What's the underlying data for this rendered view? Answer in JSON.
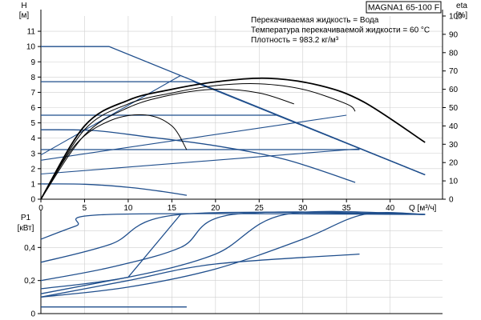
{
  "colors": {
    "curve_blue": "#1f4e8c",
    "curve_black": "#000000",
    "grid": "#cfcfcf"
  },
  "chart_data": [
    {
      "type": "line",
      "model": "MAGNA1 65-100 F",
      "info_lines": [
        "Перекачиваемая жидкость = Вода",
        "Температура перекачиваемой жидкости = 60 °C",
        "Плотность = 983.2 кг/м³"
      ],
      "ylabel": "H",
      "yunit": "[м]",
      "y2label": "eta",
      "y2unit": "[%]",
      "xlabel": "Q",
      "xunit": "[м³/ч]",
      "xlim": [
        0,
        46
      ],
      "ylim": [
        0,
        12
      ],
      "y2lim": [
        0,
        100
      ],
      "x_ticks": [
        "0",
        "5",
        "10",
        "15",
        "20",
        "25",
        "30",
        "35",
        "40"
      ],
      "y_ticks": [
        "0",
        "1",
        "2",
        "3",
        "4",
        "5",
        "6",
        "7",
        "8",
        "9",
        "10",
        "11"
      ],
      "y2_ticks": [
        "0",
        "10",
        "20",
        "30",
        "40",
        "50",
        "60",
        "70",
        "80",
        "90",
        "100"
      ],
      "grid": true,
      "head_curves": [
        {
          "points": [
            [
              0,
              10
            ],
            [
              7.8,
              10
            ],
            [
              44,
              1.6
            ]
          ]
        },
        {
          "points": [
            [
              0,
              7.7
            ],
            [
              17.5,
              7.7
            ],
            [
              44,
              1.6
            ]
          ]
        },
        {
          "points": [
            [
              0,
              5.5
            ],
            [
              27,
              5.5
            ],
            [
              44,
              1.6
            ]
          ]
        },
        {
          "points": [
            [
              0,
              4.55
            ],
            [
              6,
              4.5
            ],
            [
              12,
              4.1
            ],
            [
              20,
              3.5
            ],
            [
              28,
              2.6
            ],
            [
              36,
              1.1
            ]
          ]
        },
        {
          "points": [
            [
              0,
              3.25
            ],
            [
              36.5,
              3.25
            ]
          ]
        },
        {
          "points": [
            [
              0,
              1.0
            ],
            [
              5,
              0.98
            ],
            [
              10,
              0.78
            ],
            [
              14,
              0.5
            ],
            [
              16.7,
              0.25
            ]
          ]
        }
      ],
      "system_curves": [
        {
          "points": [
            [
              0,
              2.9
            ],
            [
              16,
              8.1
            ]
          ]
        },
        {
          "points": [
            [
              0,
              2.55
            ],
            [
              35,
              5.5
            ]
          ]
        },
        {
          "points": [
            [
              0,
              1.65
            ],
            [
              36.5,
              3.3
            ]
          ]
        }
      ],
      "efficiency_curves": [
        {
          "points": [
            [
              0,
              0
            ],
            [
              4,
              30
            ],
            [
              8,
              43
            ],
            [
              12,
              46
            ],
            [
              15,
              40
            ],
            [
              16.7,
              27
            ]
          ]
        },
        {
          "points": [
            [
              0,
              0
            ],
            [
              5,
              35
            ],
            [
              10,
              50
            ],
            [
              15,
              57
            ],
            [
              20,
              60
            ],
            [
              25,
              58
            ],
            [
              29,
              52
            ]
          ]
        },
        {
          "points": [
            [
              0,
              0
            ],
            [
              5,
              38
            ],
            [
              10,
              52
            ],
            [
              15,
              58
            ],
            [
              20,
              62
            ],
            [
              25,
              63
            ],
            [
              30,
              60
            ],
            [
              35,
              52
            ],
            [
              36,
              48
            ]
          ]
        },
        {
          "points": [
            [
              0,
              0
            ],
            [
              5,
              40
            ],
            [
              10,
              54
            ],
            [
              15,
              60
            ],
            [
              20,
              64
            ],
            [
              26,
              66
            ],
            [
              32,
              62
            ],
            [
              37,
              53
            ],
            [
              44,
              31
            ]
          ]
        }
      ],
      "power": {
        "ylabel": "P1",
        "yunit": "[кВт]",
        "ylim": [
          0,
          0.6
        ],
        "xlim": [
          0,
          46
        ],
        "y_ticks": [
          "0",
          "0,2",
          "0,4"
        ],
        "curves": [
          {
            "points": [
              [
                0,
                0.45
              ],
              [
                4,
                0.53
              ],
              [
                8,
                0.6
              ],
              [
                44,
                0.6
              ]
            ]
          },
          {
            "points": [
              [
                0,
                0.31
              ],
              [
                8,
                0.42
              ],
              [
                16,
                0.6
              ],
              [
                44,
                0.6
              ]
            ]
          },
          {
            "points": [
              [
                0,
                0.2
              ],
              [
                8,
                0.28
              ],
              [
                16,
                0.4
              ],
              [
                22,
                0.6
              ],
              [
                44,
                0.6
              ]
            ]
          },
          {
            "points": [
              [
                0,
                0.15
              ],
              [
                10,
                0.22
              ],
              [
                20,
                0.36
              ],
              [
                28,
                0.6
              ],
              [
                44,
                0.6
              ]
            ]
          },
          {
            "points": [
              [
                0,
                0.1
              ],
              [
                10,
                0.16
              ],
              [
                20,
                0.27
              ],
              [
                30,
                0.45
              ],
              [
                37,
                0.6
              ],
              [
                44,
                0.6
              ]
            ]
          },
          {
            "points": [
              [
                0,
                0.12
              ],
              [
                10,
                0.22
              ],
              [
                16,
                0.6
              ]
            ]
          },
          {
            "points": [
              [
                0,
                0.1
              ],
              [
                10,
                0.2
              ],
              [
                20,
                0.3
              ],
              [
                36.5,
                0.36
              ]
            ]
          },
          {
            "points": [
              [
                0,
                0.04
              ],
              [
                16.7,
                0.04
              ]
            ]
          }
        ]
      }
    }
  ]
}
